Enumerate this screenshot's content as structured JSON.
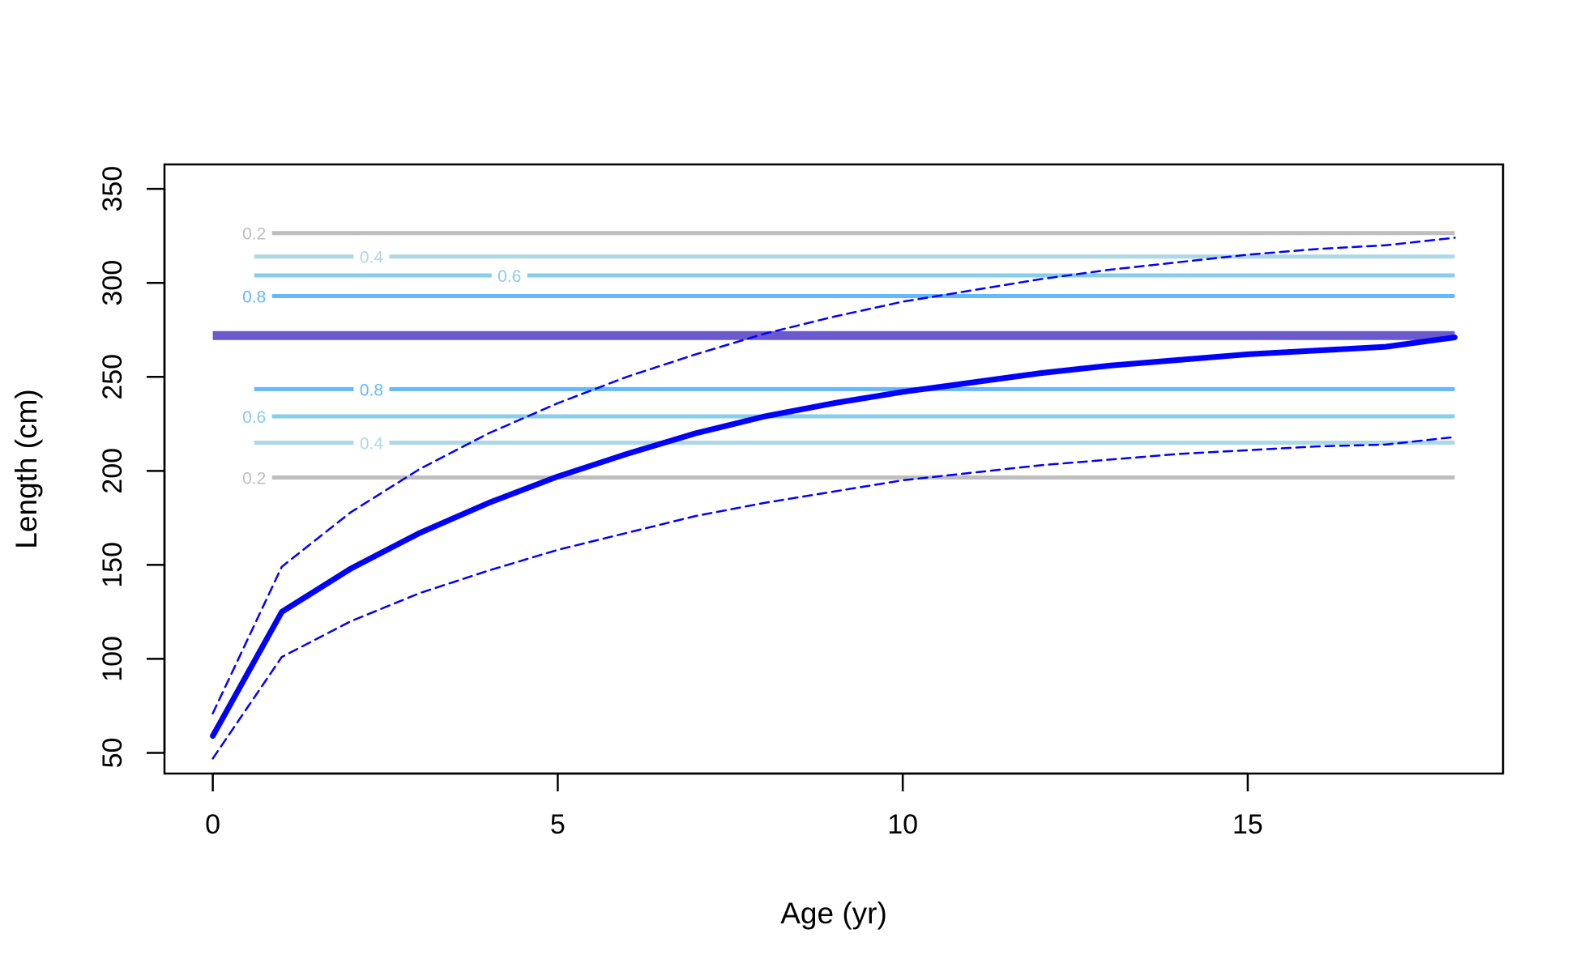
{
  "chart_data": {
    "type": "line",
    "xlabel": "Age (yr)",
    "ylabel": "Length (cm)",
    "xlim": [
      -0.7,
      18.7
    ],
    "ylim": [
      39,
      363
    ],
    "xticks": [
      0,
      5,
      10,
      15
    ],
    "xtick_labels": [
      "0",
      "5",
      "10",
      "15"
    ],
    "yticks": [
      50,
      100,
      150,
      200,
      250,
      300,
      350
    ],
    "ytick_labels": [
      "50",
      "100",
      "150",
      "200",
      "250",
      "300",
      "350"
    ],
    "grid": false,
    "legend": "none",
    "series": [
      {
        "style": "solid-thick",
        "color": "#0000FF",
        "x": [
          0,
          1,
          2,
          3,
          4,
          5,
          6,
          7,
          8,
          9,
          10,
          11,
          12,
          13,
          14,
          15,
          16,
          17,
          18
        ],
        "y": [
          59,
          125,
          148,
          167,
          183,
          197,
          209,
          220,
          229,
          236,
          242,
          247,
          252,
          256,
          259,
          262,
          264,
          266,
          271
        ]
      },
      {
        "style": "dashed",
        "color": "#0000FF",
        "x": [
          0,
          1,
          2,
          3,
          4,
          5,
          6,
          7,
          8,
          9,
          10,
          11,
          12,
          13,
          14,
          15,
          16,
          17,
          18
        ],
        "y": [
          71,
          149,
          178,
          201,
          220,
          236,
          250,
          262,
          273,
          282,
          290,
          296,
          302,
          307,
          311,
          315,
          318,
          320,
          324
        ]
      },
      {
        "style": "dashed",
        "color": "#0000FF",
        "x": [
          0,
          1,
          2,
          3,
          4,
          5,
          6,
          7,
          8,
          9,
          10,
          11,
          12,
          13,
          14,
          15,
          16,
          17,
          18
        ],
        "y": [
          47,
          101,
          120,
          135,
          147,
          158,
          167,
          176,
          183,
          189,
          195,
          199,
          203,
          206,
          209,
          211,
          213,
          214,
          218
        ]
      }
    ],
    "contour_lines": [
      {
        "level_label": "0.2",
        "y": 326.5,
        "color": "#BEBEBE",
        "label_x": 0.6
      },
      {
        "level_label": "0.4",
        "y": 314.0,
        "color": "#ADD8E6",
        "label_x": 2.3
      },
      {
        "level_label": "0.6",
        "y": 304.0,
        "color": "#87CEEB",
        "label_x": 4.3
      },
      {
        "level_label": "0.8",
        "y": 293.0,
        "color": "#63B8FF",
        "label_x": 0.6
      },
      {
        "level_label": "",
        "y": 272.0,
        "color": "#6A5ACD",
        "label_x": null,
        "thick": true
      },
      {
        "level_label": "0.8",
        "y": 243.5,
        "color": "#63B8FF",
        "label_x": 2.3
      },
      {
        "level_label": "0.6",
        "y": 229.0,
        "color": "#87CEEB",
        "label_x": 0.6
      },
      {
        "level_label": "0.4",
        "y": 215.0,
        "color": "#ADD8E6",
        "label_x": 2.3
      },
      {
        "level_label": "0.2",
        "y": 196.5,
        "color": "#BEBEBE",
        "label_x": 0.6
      }
    ],
    "contour_x_range": [
      0.6,
      18
    ]
  }
}
